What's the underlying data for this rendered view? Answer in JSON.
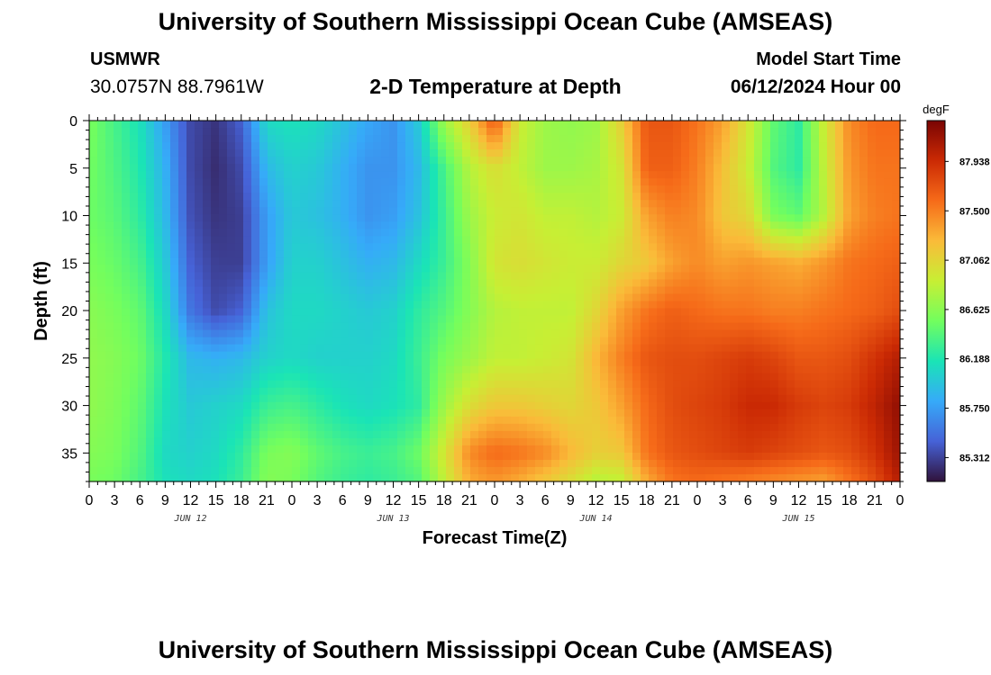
{
  "header": {
    "title": "University of Southern Mississippi Ocean Cube (AMSEAS)",
    "station": "USMWR",
    "coords": "30.0757N  88.7961W",
    "subtitle": "2-D Temperature at Depth",
    "model_start_label": "Model Start Time",
    "model_start_value": "06/12/2024 Hour 00"
  },
  "footer": {
    "title": "University of Southern Mississippi Ocean Cube (AMSEAS)"
  },
  "chart_data": {
    "type": "heatmap",
    "xlabel": "Forecast Time(Z)",
    "ylabel": "Depth (ft)",
    "xlim": [
      0,
      96
    ],
    "ylim": [
      0,
      38
    ],
    "x_tick_labels": [
      "0",
      "3",
      "6",
      "9",
      "12",
      "15",
      "18",
      "21",
      "0",
      "3",
      "6",
      "9",
      "12",
      "15",
      "18",
      "21",
      "0",
      "3",
      "6",
      "9",
      "12",
      "15",
      "18",
      "21",
      "0",
      "3",
      "6",
      "9",
      "12",
      "15",
      "18",
      "21",
      "0"
    ],
    "y_ticks": [
      0,
      5,
      10,
      15,
      20,
      25,
      30,
      35
    ],
    "day_labels": [
      {
        "label": "JUN 12",
        "hour": 12
      },
      {
        "label": "JUN 13",
        "hour": 36
      },
      {
        "label": "JUN 14",
        "hour": 60
      },
      {
        "label": "JUN 15",
        "hour": 84
      }
    ],
    "colorbar": {
      "unit": "degF",
      "min": 85.1,
      "max": 88.3,
      "labels": [
        "87.938",
        "87.500",
        "87.062",
        "86.625",
        "86.188",
        "85.750",
        "85.312"
      ],
      "stops": [
        "#30123b",
        "#4662d7",
        "#36aaf9",
        "#1ae4b6",
        "#72fe5e",
        "#c7ef34",
        "#fabb39",
        "#f66b19",
        "#cb2a04",
        "#7a0403"
      ]
    },
    "grid_hours": [
      0,
      3,
      6,
      9,
      12,
      15,
      18,
      21,
      24,
      27,
      30,
      33,
      36,
      39,
      42,
      45,
      48,
      51,
      54,
      57,
      60,
      63,
      66,
      69,
      72,
      75,
      78,
      81,
      84,
      87,
      90,
      93,
      96
    ],
    "grid_depths": [
      0,
      5,
      10,
      15,
      20,
      25,
      30,
      35,
      38
    ],
    "values": [
      [
        86.55,
        86.52,
        86.5,
        86.55,
        86.62,
        86.65,
        86.65,
        86.6,
        86.55
      ],
      [
        86.35,
        86.38,
        86.42,
        86.48,
        86.55,
        86.6,
        86.58,
        86.55,
        86.5
      ],
      [
        86.15,
        86.2,
        86.25,
        86.35,
        86.45,
        86.5,
        86.45,
        86.4,
        86.35
      ],
      [
        85.75,
        85.85,
        85.9,
        86.0,
        86.1,
        86.2,
        86.15,
        86.1,
        86.15
      ],
      [
        85.35,
        85.35,
        85.38,
        85.45,
        85.55,
        85.9,
        86.0,
        86.05,
        86.1
      ],
      [
        85.25,
        85.22,
        85.25,
        85.3,
        85.35,
        85.85,
        86.05,
        86.1,
        86.15
      ],
      [
        85.45,
        85.35,
        85.3,
        85.3,
        85.45,
        85.9,
        86.1,
        86.25,
        86.3
      ],
      [
        86.1,
        85.9,
        85.75,
        85.75,
        85.95,
        86.05,
        86.3,
        86.55,
        86.6
      ],
      [
        86.15,
        86.05,
        86.0,
        86.05,
        86.1,
        86.1,
        86.35,
        86.6,
        86.55
      ],
      [
        86.1,
        86.0,
        85.95,
        86.05,
        86.1,
        86.05,
        86.25,
        86.45,
        86.4
      ],
      [
        85.95,
        85.85,
        85.85,
        85.95,
        86.05,
        86.05,
        86.15,
        86.35,
        86.3
      ],
      [
        85.8,
        85.7,
        85.7,
        85.85,
        86.0,
        86.05,
        86.1,
        86.3,
        86.25
      ],
      [
        85.7,
        85.7,
        85.75,
        85.9,
        86.05,
        86.1,
        86.15,
        86.35,
        86.3
      ],
      [
        86.0,
        85.9,
        85.95,
        86.1,
        86.25,
        86.3,
        86.25,
        86.5,
        86.4
      ],
      [
        86.7,
        86.35,
        86.3,
        86.3,
        86.4,
        86.55,
        86.7,
        86.95,
        86.85
      ],
      [
        87.1,
        86.8,
        86.7,
        86.6,
        86.6,
        86.7,
        87.0,
        87.45,
        87.3
      ],
      [
        87.7,
        87.0,
        86.9,
        86.95,
        86.8,
        86.85,
        87.15,
        87.6,
        87.4
      ],
      [
        86.9,
        86.85,
        86.95,
        87.0,
        86.85,
        86.85,
        87.15,
        87.55,
        87.3
      ],
      [
        86.7,
        86.7,
        86.85,
        86.95,
        86.85,
        86.9,
        87.1,
        87.45,
        87.15
      ],
      [
        86.65,
        86.7,
        86.85,
        86.9,
        86.85,
        86.95,
        87.05,
        87.25,
        87.0
      ],
      [
        86.7,
        86.75,
        86.8,
        86.9,
        87.05,
        87.25,
        87.15,
        87.1,
        86.8
      ],
      [
        87.1,
        86.95,
        86.9,
        87.05,
        87.35,
        87.5,
        87.35,
        87.15,
        86.85
      ],
      [
        87.7,
        87.65,
        87.35,
        87.15,
        87.55,
        87.7,
        87.6,
        87.55,
        87.3
      ],
      [
        87.7,
        87.65,
        87.5,
        87.35,
        87.65,
        87.75,
        87.75,
        87.7,
        87.55
      ],
      [
        87.55,
        87.5,
        87.45,
        87.45,
        87.6,
        87.75,
        87.8,
        87.75,
        87.6
      ],
      [
        87.35,
        87.2,
        87.15,
        87.35,
        87.55,
        87.8,
        87.85,
        87.8,
        87.55
      ],
      [
        86.95,
        86.9,
        87.05,
        87.4,
        87.55,
        87.85,
        87.95,
        87.85,
        87.5
      ],
      [
        86.45,
        86.4,
        86.55,
        87.35,
        87.5,
        87.8,
        87.95,
        87.8,
        87.45
      ],
      [
        86.25,
        86.25,
        86.45,
        87.3,
        87.5,
        87.7,
        87.85,
        87.75,
        87.4
      ],
      [
        86.9,
        86.85,
        86.8,
        87.4,
        87.55,
        87.7,
        87.8,
        87.7,
        87.35
      ],
      [
        87.45,
        87.4,
        87.35,
        87.55,
        87.6,
        87.75,
        87.85,
        87.75,
        87.55
      ],
      [
        87.6,
        87.55,
        87.5,
        87.6,
        87.65,
        87.9,
        88.0,
        87.9,
        87.75
      ],
      [
        87.6,
        87.55,
        87.55,
        87.65,
        87.75,
        88.05,
        88.2,
        88.15,
        88.05
      ]
    ]
  }
}
